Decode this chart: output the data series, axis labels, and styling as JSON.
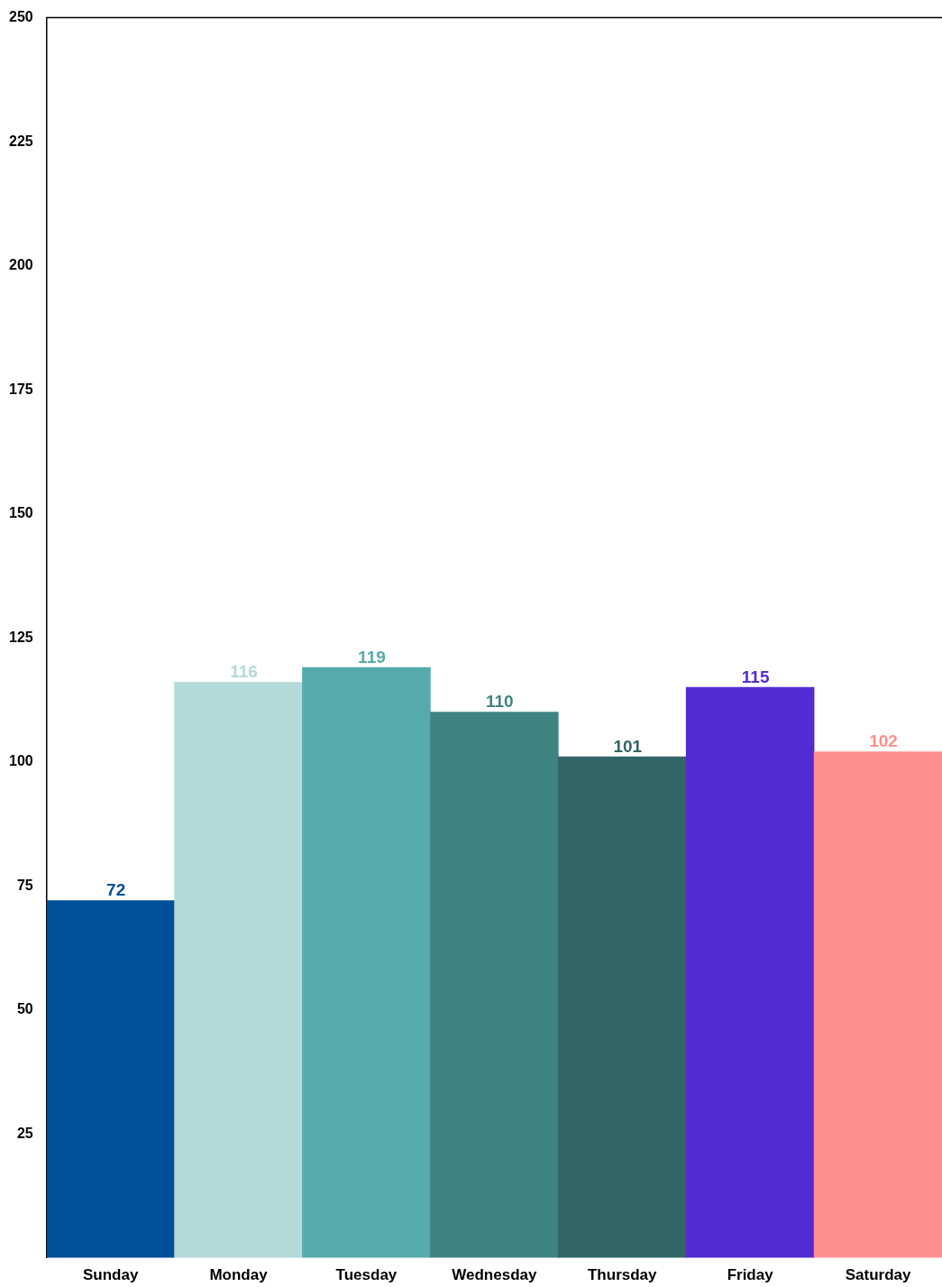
{
  "chart_data": {
    "type": "bar",
    "categories": [
      "Sunday",
      "Monday",
      "Tuesday",
      "Wednesday",
      "Thursday",
      "Friday",
      "Saturday"
    ],
    "values": [
      72,
      116,
      119,
      110,
      101,
      115,
      102
    ],
    "colors": [
      "#004f9c",
      "#b3d9d9",
      "#55abab",
      "#408482",
      "#336666",
      "#552bd3",
      "#ff8f8f"
    ],
    "ylim": [
      0,
      250
    ],
    "yticks": [
      25,
      50,
      75,
      100,
      125,
      150,
      175,
      200,
      225,
      250
    ],
    "grid": false,
    "legend": false,
    "data_labels": true
  }
}
